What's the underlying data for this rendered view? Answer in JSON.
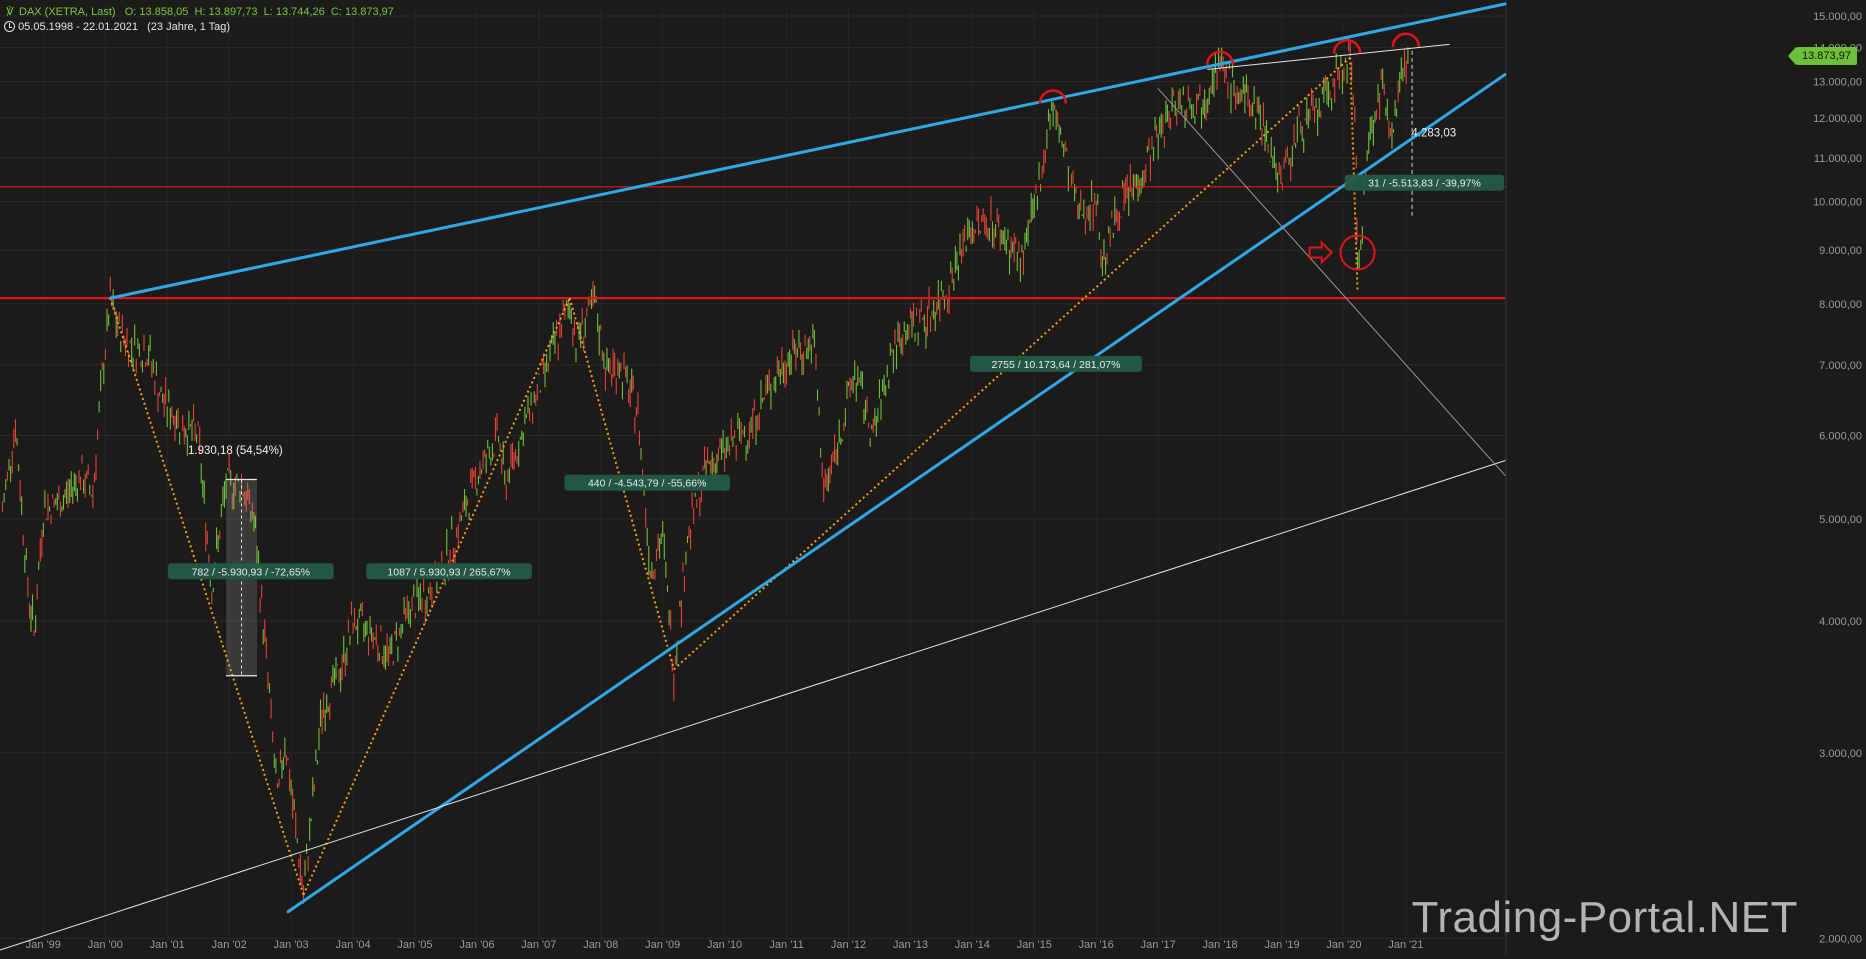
{
  "header": {
    "symbol": "DAX (XETRA, Last)",
    "open": "O: 13.858,05",
    "high": "H: 13.897,73",
    "low": "L: 13.744,26",
    "close": "C: 13.873,97",
    "range": "05.05.1998 - 22.01.2021",
    "period": "(23 Jahre, 1 Tag)"
  },
  "watermark": "Trading-Portal.NET",
  "last_value": "13.873,97",
  "colors": {
    "background": "#1c1b1a",
    "trend_blue": "#2fa8e8",
    "support_red": "#e2141b",
    "fib_orange": "#f0a21a",
    "candle_up": "#6fbf3a",
    "candle_down": "#e0443a",
    "label_bg": "#245a47"
  },
  "chart_data": {
    "type": "line",
    "scale": "log",
    "ylim": [
      1950,
      15400
    ],
    "y_ticks": [
      {
        "value": 15000,
        "label": "15.000,00"
      },
      {
        "value": 14000,
        "label": "14.000,00"
      },
      {
        "value": 13000,
        "label": "13.000,00"
      },
      {
        "value": 12000,
        "label": "12.000,00"
      },
      {
        "value": 11000,
        "label": "11.000,00"
      },
      {
        "value": 10000,
        "label": "10.000,00"
      },
      {
        "value": 9000,
        "label": "9.000,00"
      },
      {
        "value": 8000,
        "label": "8.000,00"
      },
      {
        "value": 7000,
        "label": "7.000,00"
      },
      {
        "value": 6000,
        "label": "6.000,00"
      },
      {
        "value": 5000,
        "label": "5.000,00"
      },
      {
        "value": 4000,
        "label": "4.000,00"
      },
      {
        "value": 3000,
        "label": "3.000,00"
      },
      {
        "value": 2000,
        "label": "2.000,00"
      }
    ],
    "x_ticks": [
      {
        "year": 1999.0,
        "label": "Jan '99"
      },
      {
        "year": 2000.0,
        "label": "Jan '00"
      },
      {
        "year": 2001.0,
        "label": "Jan '01"
      },
      {
        "year": 2002.0,
        "label": "Jan '02"
      },
      {
        "year": 2003.0,
        "label": "Jan '03"
      },
      {
        "year": 2004.0,
        "label": "Jan '04"
      },
      {
        "year": 2005.0,
        "label": "Jan '05"
      },
      {
        "year": 2006.0,
        "label": "Jan '06"
      },
      {
        "year": 2007.0,
        "label": "Jan '07"
      },
      {
        "year": 2008.0,
        "label": "Jan '08"
      },
      {
        "year": 2009.0,
        "label": "Jan '09"
      },
      {
        "year": 2010.0,
        "label": "Jan '10"
      },
      {
        "year": 2011.0,
        "label": "Jan '11"
      },
      {
        "year": 2012.0,
        "label": "Jan '12"
      },
      {
        "year": 2013.0,
        "label": "Jan '13"
      },
      {
        "year": 2014.0,
        "label": "Jan '14"
      },
      {
        "year": 2015.0,
        "label": "Jan '15"
      },
      {
        "year": 2016.0,
        "label": "Jan '16"
      },
      {
        "year": 2017.0,
        "label": "Jan '17"
      },
      {
        "year": 2018.0,
        "label": "Jan '18"
      },
      {
        "year": 2019.0,
        "label": "Jan '19"
      },
      {
        "year": 2020.0,
        "label": "Jan '20"
      },
      {
        "year": 2021.0,
        "label": "Jan '21"
      }
    ],
    "series": [
      {
        "points": [
          [
            1998.34,
            5100
          ],
          [
            1998.55,
            6150
          ],
          [
            1998.75,
            4300
          ],
          [
            1998.85,
            3900
          ],
          [
            1999.0,
            5100
          ],
          [
            1999.3,
            5200
          ],
          [
            1999.6,
            5500
          ],
          [
            1999.8,
            5300
          ],
          [
            1999.95,
            6800
          ],
          [
            2000.08,
            8050
          ],
          [
            2000.2,
            7600
          ],
          [
            2000.4,
            7300
          ],
          [
            2000.7,
            7200
          ],
          [
            2000.9,
            6500
          ],
          [
            2001.1,
            6300
          ],
          [
            2001.3,
            6100
          ],
          [
            2001.5,
            6000
          ],
          [
            2001.72,
            4300
          ],
          [
            2001.95,
            5400
          ],
          [
            2002.2,
            5400
          ],
          [
            2002.4,
            5000
          ],
          [
            2002.6,
            3700
          ],
          [
            2002.78,
            2700
          ],
          [
            2002.9,
            3100
          ],
          [
            2003.2,
            2200
          ],
          [
            2003.5,
            3300
          ],
          [
            2003.8,
            3600
          ],
          [
            2004.0,
            4000
          ],
          [
            2004.3,
            3900
          ],
          [
            2004.6,
            3700
          ],
          [
            2004.9,
            4100
          ],
          [
            2005.3,
            4300
          ],
          [
            2005.7,
            4900
          ],
          [
            2006.0,
            5500
          ],
          [
            2006.35,
            6000
          ],
          [
            2006.45,
            5400
          ],
          [
            2006.8,
            6200
          ],
          [
            2007.1,
            6900
          ],
          [
            2007.5,
            8000
          ],
          [
            2007.6,
            7400
          ],
          [
            2007.9,
            8000
          ],
          [
            2008.1,
            6900
          ],
          [
            2008.3,
            7000
          ],
          [
            2008.6,
            6300
          ],
          [
            2008.8,
            4500
          ],
          [
            2009.0,
            4800
          ],
          [
            2009.18,
            3600
          ],
          [
            2009.4,
            4800
          ],
          [
            2009.7,
            5600
          ],
          [
            2010.0,
            5800
          ],
          [
            2010.4,
            6100
          ],
          [
            2010.8,
            6800
          ],
          [
            2011.1,
            7200
          ],
          [
            2011.45,
            7300
          ],
          [
            2011.6,
            5300
          ],
          [
            2011.8,
            5800
          ],
          [
            2012.1,
            6900
          ],
          [
            2012.4,
            6000
          ],
          [
            2012.7,
            7200
          ],
          [
            2012.95,
            7600
          ],
          [
            2013.3,
            7800
          ],
          [
            2013.6,
            8300
          ],
          [
            2013.95,
            9400
          ],
          [
            2014.3,
            9600
          ],
          [
            2014.6,
            9100
          ],
          [
            2014.8,
            8800
          ],
          [
            2015.0,
            9800
          ],
          [
            2015.28,
            12300
          ],
          [
            2015.45,
            11400
          ],
          [
            2015.7,
            9800
          ],
          [
            2016.0,
            10000
          ],
          [
            2016.1,
            8800
          ],
          [
            2016.4,
            10000
          ],
          [
            2016.7,
            10500
          ],
          [
            2016.95,
            11400
          ],
          [
            2017.3,
            12500
          ],
          [
            2017.7,
            12400
          ],
          [
            2017.9,
            13400
          ],
          [
            2018.1,
            13200
          ],
          [
            2018.3,
            12600
          ],
          [
            2018.6,
            12300
          ],
          [
            2018.8,
            11300
          ],
          [
            2018.98,
            10500
          ],
          [
            2019.3,
            11800
          ],
          [
            2019.6,
            12200
          ],
          [
            2019.9,
            13200
          ],
          [
            2020.1,
            13700
          ],
          [
            2020.2,
            11000
          ],
          [
            2020.22,
            8500
          ],
          [
            2020.4,
            11500
          ],
          [
            2020.6,
            12800
          ],
          [
            2020.8,
            11800
          ],
          [
            2020.95,
            13500
          ],
          [
            2021.06,
            13900
          ]
        ]
      }
    ],
    "horizontal_lines": [
      {
        "value": 8100,
        "color": "#e2141b",
        "width": 2.2
      },
      {
        "value": 10330,
        "color": "#e2141b",
        "width": 1.2
      }
    ],
    "trendlines": [
      {
        "from": [
          2000.08,
          8100
        ],
        "to": [
          2022.6,
          15400
        ],
        "color": "#2fa8e8",
        "width": 3
      },
      {
        "from": [
          2002.95,
          2120
        ],
        "to": [
          2022.6,
          13200
        ],
        "color": "#2fa8e8",
        "width": 3
      },
      {
        "from": [
          1998.3,
          1950
        ],
        "to": [
          2022.6,
          5680
        ],
        "color": "#e8e8e8",
        "width": 1
      },
      {
        "from": [
          2017.0,
          12800
        ],
        "to": [
          2022.6,
          5500
        ],
        "color": "#9a9a9a",
        "width": 1
      },
      {
        "from": [
          2017.8,
          13350
        ],
        "to": [
          2021.7,
          14100
        ],
        "color": "#e8e8e8",
        "width": 1
      }
    ],
    "fib_lines": [
      [
        [
          2000.08,
          8100
        ],
        [
          2003.2,
          2200
        ]
      ],
      [
        [
          2003.2,
          2200
        ],
        [
          2007.5,
          8100
        ]
      ],
      [
        [
          2007.5,
          8100
        ],
        [
          2009.18,
          3600
        ]
      ],
      [
        [
          2009.18,
          3600
        ],
        [
          2020.1,
          13700
        ]
      ],
      [
        [
          2020.1,
          13700
        ],
        [
          2020.22,
          8200
        ]
      ]
    ],
    "arcs": [
      {
        "x": 2015.3,
        "value": 12500
      },
      {
        "x": 2018.0,
        "value": 13600
      },
      {
        "x": 2020.05,
        "value": 13950
      },
      {
        "x": 2021.0,
        "value": 14150
      }
    ],
    "circle_marker": {
      "x": 2020.22,
      "value": 8950
    },
    "annotations": [
      {
        "text": "1.930,18 (54,54%)",
        "x": 2002.1,
        "value": 5800,
        "boxed": false
      },
      {
        "text": "782 / -5.930,93 / -72,65%",
        "x": 2002.35,
        "value": 4450,
        "boxed": true
      },
      {
        "text": "1087 / 5.930,93 / 265,67%",
        "x": 2005.55,
        "value": 4450,
        "boxed": true
      },
      {
        "text": "440 / -4.543,79 / -55,66%",
        "x": 2008.75,
        "value": 5400,
        "boxed": true
      },
      {
        "text": "2755 / 10.173,64 / 281,07%",
        "x": 2015.35,
        "value": 7000,
        "boxed": true
      },
      {
        "text": "31 / -5.513,83 / -39,97%",
        "x": 2021.3,
        "value": 10400,
        "boxed": true
      },
      {
        "text": "4.283,03",
        "x": 2021.45,
        "value": 11600,
        "boxed": false
      }
    ]
  }
}
